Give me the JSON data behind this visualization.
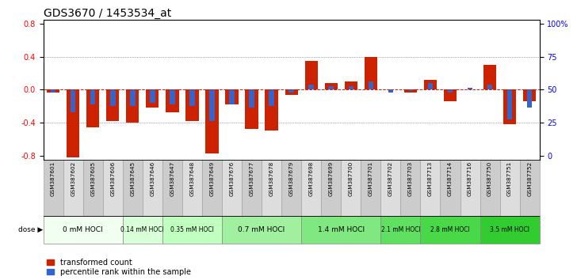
{
  "title": "GDS3670 / 1453534_at",
  "samples": [
    "GSM387601",
    "GSM387602",
    "GSM387605",
    "GSM387606",
    "GSM387645",
    "GSM387646",
    "GSM387647",
    "GSM387648",
    "GSM387649",
    "GSM387676",
    "GSM387677",
    "GSM387678",
    "GSM387679",
    "GSM387698",
    "GSM387699",
    "GSM387700",
    "GSM387701",
    "GSM387702",
    "GSM387703",
    "GSM387713",
    "GSM387714",
    "GSM387716",
    "GSM387750",
    "GSM387751",
    "GSM387752"
  ],
  "red_values": [
    -0.04,
    -0.82,
    -0.46,
    -0.38,
    -0.4,
    -0.22,
    -0.28,
    -0.38,
    -0.78,
    -0.18,
    -0.48,
    -0.5,
    -0.06,
    0.35,
    0.08,
    0.1,
    0.4,
    0.0,
    -0.04,
    0.12,
    -0.14,
    0.0,
    0.3,
    -0.42,
    -0.14
  ],
  "blue_values": [
    -0.04,
    -0.28,
    -0.18,
    -0.2,
    -0.2,
    -0.16,
    -0.18,
    -0.2,
    -0.38,
    -0.18,
    -0.22,
    -0.2,
    -0.04,
    0.06,
    0.04,
    0.04,
    0.1,
    -0.04,
    -0.02,
    0.08,
    -0.04,
    0.02,
    0.06,
    -0.36,
    -0.22
  ],
  "dose_groups": [
    {
      "label": "0 mM HOCl",
      "start": 0,
      "end": 4,
      "color": "#f0fff0"
    },
    {
      "label": "0.14 mM HOCl",
      "start": 4,
      "end": 6,
      "color": "#d8ffd8"
    },
    {
      "label": "0.35 mM HOCl",
      "start": 6,
      "end": 9,
      "color": "#c0ffc0"
    },
    {
      "label": "0.7 mM HOCl",
      "start": 9,
      "end": 13,
      "color": "#a0f0a0"
    },
    {
      "label": "1.4 mM HOCl",
      "start": 13,
      "end": 17,
      "color": "#80e880"
    },
    {
      "label": "2.1 mM HOCl",
      "start": 17,
      "end": 19,
      "color": "#60e060"
    },
    {
      "label": "2.8 mM HOCl",
      "start": 19,
      "end": 22,
      "color": "#48d848"
    },
    {
      "label": "3.5 mM HOCl",
      "start": 22,
      "end": 25,
      "color": "#30cc30"
    }
  ],
  "ylim": [
    -0.85,
    0.85
  ],
  "yticks": [
    -0.8,
    -0.4,
    0.0,
    0.4,
    0.8
  ],
  "right_yticks": [
    0,
    25,
    50,
    75,
    100
  ],
  "bar_width": 0.65,
  "red_color": "#cc2200",
  "blue_color": "#3366cc",
  "zero_line_color": "#dd1100",
  "bg_color": "#ffffff",
  "title_fontsize": 10
}
